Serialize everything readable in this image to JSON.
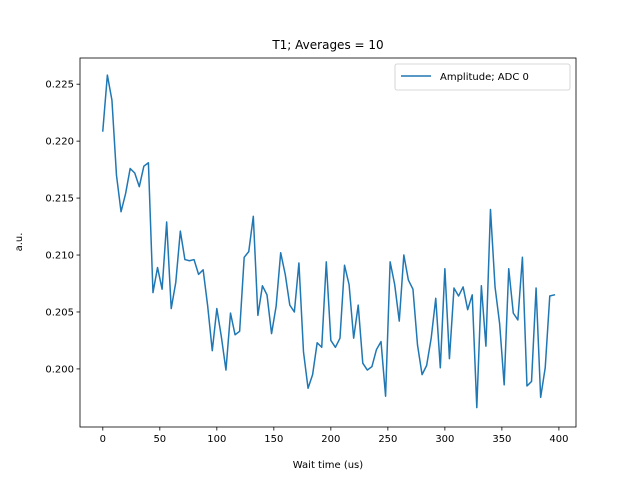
{
  "chart_data": {
    "type": "line",
    "title": "T1; Averages = 10",
    "xlabel": "Wait time (us)",
    "ylabel": "a.u.",
    "xlim": [
      -20,
      415
    ],
    "ylim": [
      0.1949,
      0.2273
    ],
    "xticks": [
      0,
      50,
      100,
      150,
      200,
      250,
      300,
      350,
      400
    ],
    "yticks": [
      0.2,
      0.205,
      0.21,
      0.215,
      0.22,
      0.225
    ],
    "yticks_labels": [
      "0.200",
      "0.205",
      "0.210",
      "0.215",
      "0.220",
      "0.225"
    ],
    "grid": false,
    "legend_position": "top-right",
    "series": [
      {
        "name": "Amplitude; ADC 0",
        "color": "#1f77b4",
        "x": [
          0,
          4,
          8,
          12,
          16,
          20,
          24,
          28,
          32,
          36,
          40,
          44,
          48,
          52,
          56,
          60,
          64,
          68,
          72,
          76,
          80,
          84,
          88,
          92,
          96,
          100,
          104,
          108,
          112,
          116,
          120,
          124,
          128,
          132,
          136,
          140,
          144,
          148,
          152,
          156,
          160,
          164,
          168,
          172,
          176,
          180,
          184,
          188,
          192,
          196,
          200,
          204,
          208,
          212,
          216,
          220,
          224,
          228,
          232,
          236,
          240,
          244,
          248,
          252,
          256,
          260,
          264,
          268,
          272,
          276,
          280,
          284,
          288,
          292,
          296,
          300,
          304,
          308,
          312,
          316,
          320,
          324,
          328,
          332,
          336,
          340,
          344,
          348,
          352,
          356,
          360,
          364,
          368,
          372,
          376,
          380,
          384,
          388,
          392,
          396
        ],
        "y": [
          0.2209,
          0.2258,
          0.2236,
          0.217,
          0.2138,
          0.2154,
          0.2176,
          0.2172,
          0.216,
          0.2178,
          0.2181,
          0.2067,
          0.2089,
          0.207,
          0.2129,
          0.2053,
          0.2076,
          0.2121,
          0.2096,
          0.2095,
          0.2096,
          0.2083,
          0.2087,
          0.2055,
          0.2016,
          0.2053,
          0.2028,
          0.1999,
          0.2049,
          0.203,
          0.2033,
          0.2098,
          0.2103,
          0.2134,
          0.2047,
          0.2073,
          0.2065,
          0.2031,
          0.2055,
          0.2102,
          0.2083,
          0.2056,
          0.205,
          0.2093,
          0.2015,
          0.1983,
          0.1995,
          0.2023,
          0.2019,
          0.2094,
          0.2025,
          0.2019,
          0.2027,
          0.2091,
          0.2074,
          0.2027,
          0.2056,
          0.2005,
          0.1999,
          0.2002,
          0.2017,
          0.2024,
          0.1976,
          0.2094,
          0.2074,
          0.2042,
          0.21,
          0.2078,
          0.207,
          0.2021,
          0.1995,
          0.2003,
          0.2027,
          0.2062,
          0.2001,
          0.2088,
          0.2009,
          0.2071,
          0.2064,
          0.2072,
          0.2052,
          0.2065,
          0.1966,
          0.2073,
          0.202,
          0.214,
          0.2072,
          0.204,
          0.1986,
          0.2088,
          0.2049,
          0.2043,
          0.2098,
          0.1985,
          0.1989,
          0.2071,
          0.1975,
          0.2001,
          0.2064,
          0.2065
        ]
      }
    ]
  }
}
